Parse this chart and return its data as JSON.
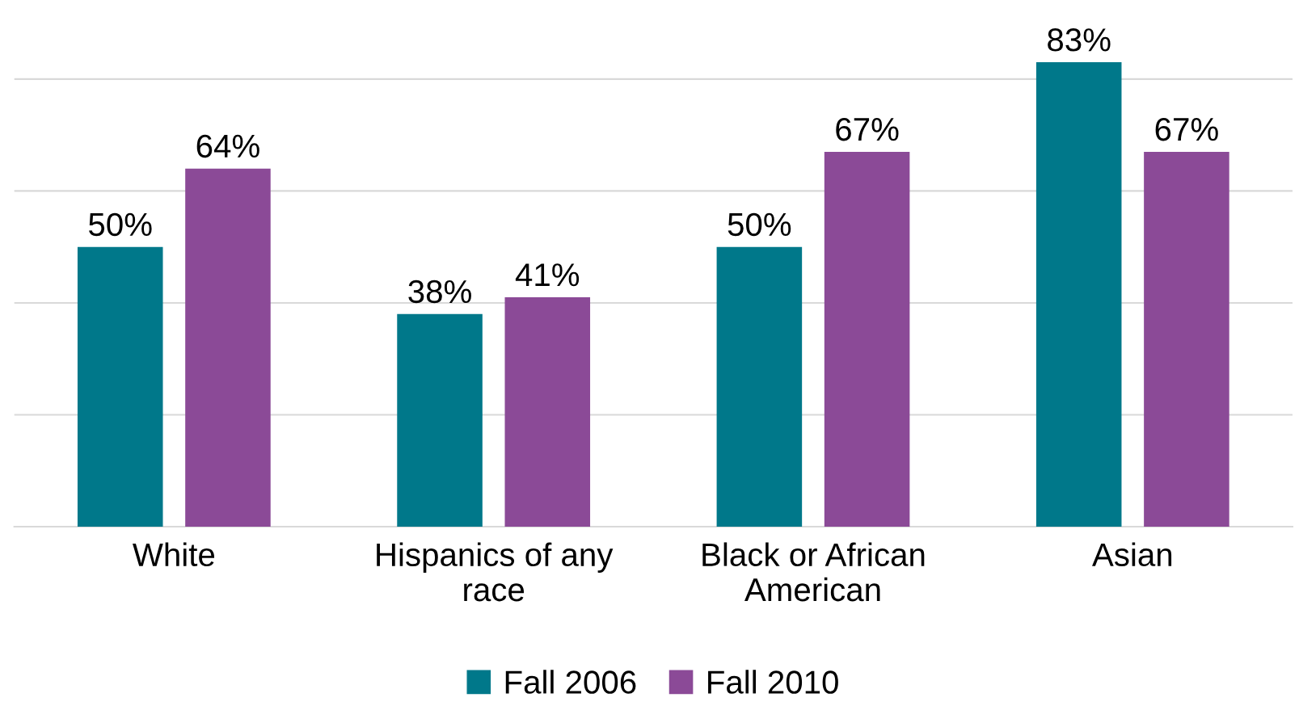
{
  "chart_data": {
    "type": "bar",
    "categories": [
      "White",
      "Hispanics of any\nrace",
      "Black or African\nAmerican",
      "Asian"
    ],
    "series": [
      {
        "name": "Fall 2006",
        "color": "#00788a",
        "values": [
          50,
          38,
          50,
          83
        ],
        "value_labels": [
          "50%",
          "38%",
          "50%",
          "83%"
        ]
      },
      {
        "name": "Fall 2010",
        "color": "#8b4a97",
        "values": [
          64,
          41,
          67,
          67
        ],
        "value_labels": [
          "64%",
          "41%",
          "67%",
          "67%"
        ]
      }
    ],
    "grid": "y",
    "legend": "bottom",
    "tick_labels": "x"
  }
}
